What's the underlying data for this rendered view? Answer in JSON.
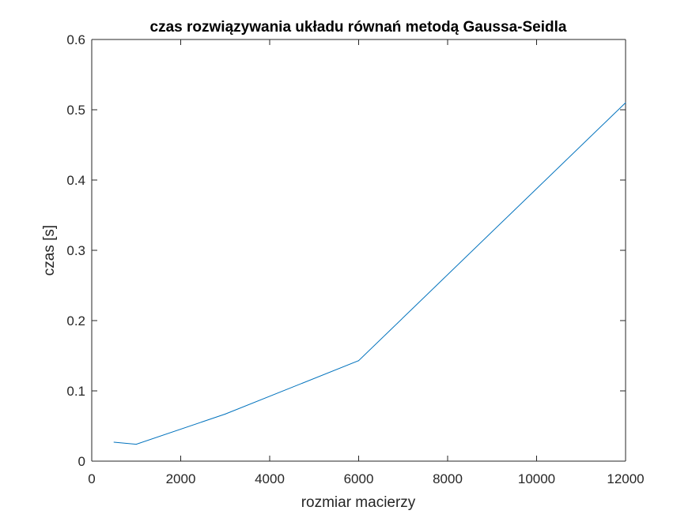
{
  "chart_data": {
    "type": "line",
    "title": "czas rozwiązywania układu równań metodą Gaussa-Seidla",
    "xlabel": "rozmiar macierzy",
    "ylabel": "czas [s]",
    "xlim": [
      0,
      12000
    ],
    "ylim": [
      0,
      0.6
    ],
    "xticks": [
      0,
      2000,
      4000,
      6000,
      8000,
      10000,
      12000
    ],
    "yticks": [
      0,
      0.1,
      0.2,
      0.3,
      0.4,
      0.5,
      0.6
    ],
    "xtick_labels": [
      "0",
      "2000",
      "4000",
      "6000",
      "8000",
      "10000",
      "12000"
    ],
    "ytick_labels": [
      "0",
      "0.1",
      "0.2",
      "0.3",
      "0.4",
      "0.5",
      "0.6"
    ],
    "grid": false,
    "series": [
      {
        "x": [
          500,
          1000,
          3000,
          6000,
          12000
        ],
        "y": [
          0.027,
          0.024,
          0.067,
          0.143,
          0.51
        ],
        "color": "#0072BD"
      }
    ]
  }
}
